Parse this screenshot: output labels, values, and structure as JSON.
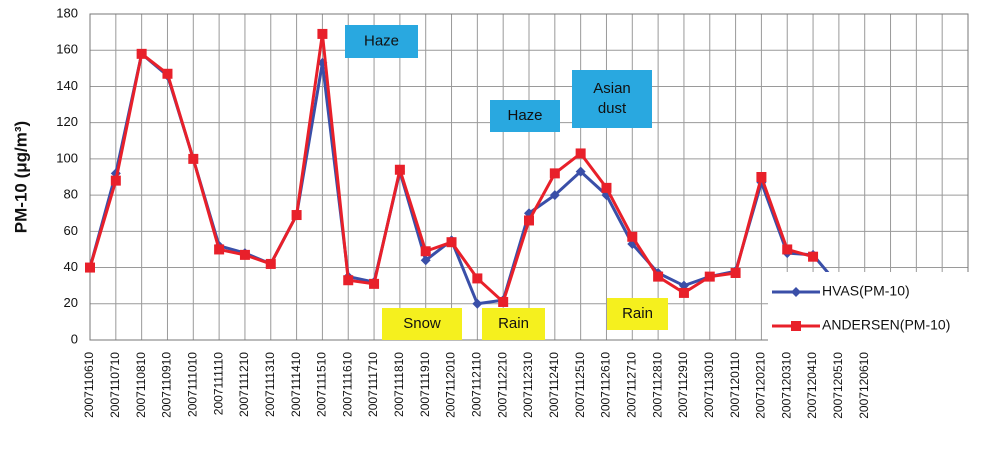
{
  "chart_data": {
    "type": "line",
    "ylabel": "PM-10 (μg/m³)",
    "categories": [
      "2007110610",
      "2007110710",
      "2007110810",
      "2007110910",
      "2007111010",
      "2007111110",
      "2007111210",
      "2007111310",
      "2007111410",
      "2007111510",
      "2007111610",
      "2007111710",
      "2007111810",
      "2007111910",
      "2007112010",
      "2007112110",
      "2007112210",
      "2007112310",
      "2007112410",
      "2007112510",
      "2007112610",
      "2007112710",
      "2007112810",
      "2007112910",
      "2007113010",
      "2007120110",
      "2007120210",
      "2007120310",
      "2007120410",
      "2007120510",
      "2007120610",
      null,
      null,
      null,
      null
    ],
    "series": [
      {
        "name": "HVAS(PM-10)",
        "color": "#3a4fa8",
        "marker": "diamond",
        "values": [
          40,
          92,
          158,
          146,
          100,
          52,
          48,
          42,
          69,
          153,
          35,
          32,
          93,
          44,
          55,
          20,
          22,
          70,
          80,
          93,
          80,
          53,
          37,
          30,
          35,
          38,
          87,
          48,
          47,
          30,
          null,
          null,
          null,
          null,
          null
        ]
      },
      {
        "name": "ANDERSEN(PM-10)",
        "color": "#e8202a",
        "marker": "square",
        "values": [
          40,
          88,
          158,
          147,
          100,
          50,
          47,
          42,
          69,
          169,
          33,
          31,
          94,
          49,
          54,
          34,
          21,
          66,
          92,
          103,
          84,
          57,
          35,
          26,
          35,
          37,
          90,
          50,
          46,
          null,
          null,
          null,
          null,
          null,
          null
        ]
      }
    ],
    "ylim": [
      0,
      180
    ],
    "yticks": [
      0,
      20,
      40,
      60,
      80,
      100,
      120,
      140,
      160,
      180
    ],
    "grid": true,
    "annotations": [
      {
        "text": "Haze",
        "color": "#29a8e0"
      },
      {
        "text": "Haze",
        "color": "#29a8e0"
      },
      {
        "text": "Asian dust",
        "color": "#29a8e0"
      },
      {
        "text": "Snow",
        "color": "#f5f01e"
      },
      {
        "text": "Rain",
        "color": "#f5f01e"
      },
      {
        "text": "Rain",
        "color": "#f5f01e"
      }
    ],
    "legend": "lower right"
  }
}
